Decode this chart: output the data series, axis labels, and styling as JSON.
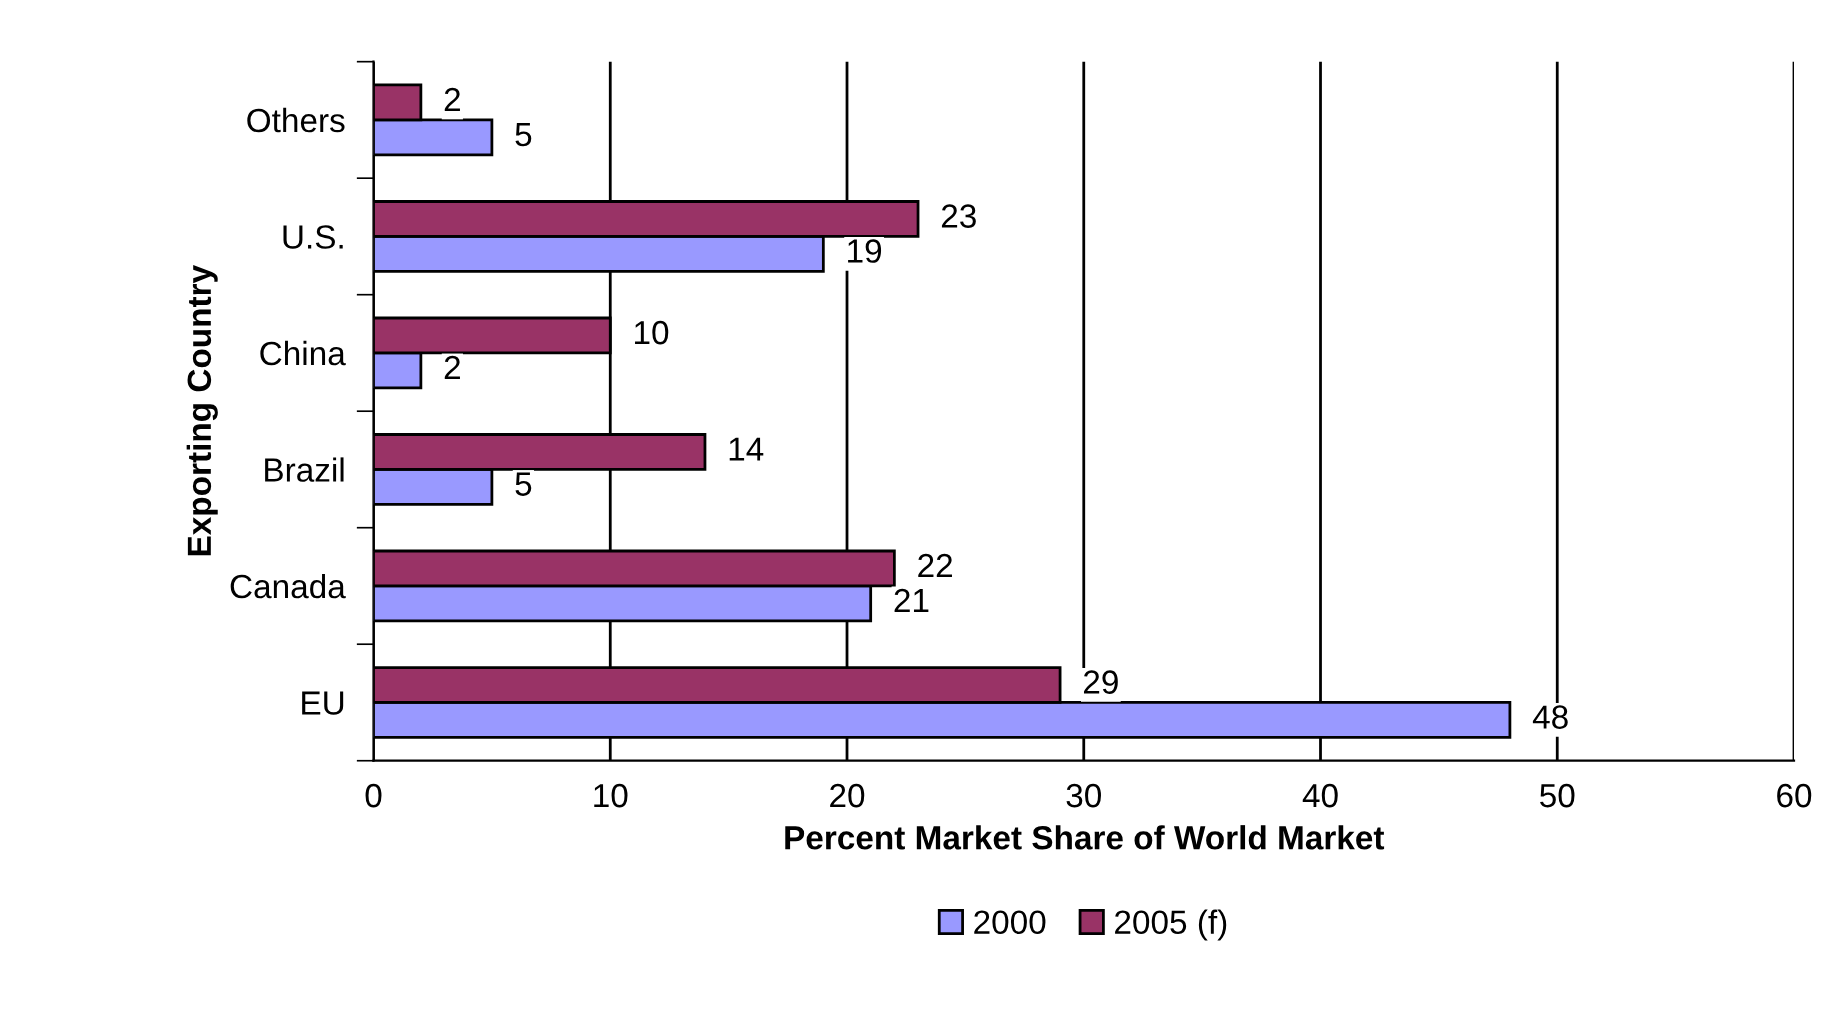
{
  "chart_data": {
    "type": "bar",
    "orientation": "horizontal",
    "xlabel": "Percent Market Share of World Market",
    "ylabel": "Exporting Country",
    "categories": [
      "Others",
      "U.S.",
      "China",
      "Brazil",
      "Canada",
      "EU"
    ],
    "series": [
      {
        "name": "2000",
        "color": "#9999ff",
        "values": [
          5,
          19,
          2,
          5,
          21,
          48
        ]
      },
      {
        "name": "2005 (f)",
        "color": "#993366",
        "values": [
          2,
          23,
          10,
          14,
          22,
          29
        ]
      }
    ],
    "xlim": [
      0,
      60
    ],
    "xticks": [
      0,
      10,
      20,
      30,
      40,
      50,
      60
    ],
    "grid": "x",
    "legend": "bottom",
    "data_labels": true
  }
}
